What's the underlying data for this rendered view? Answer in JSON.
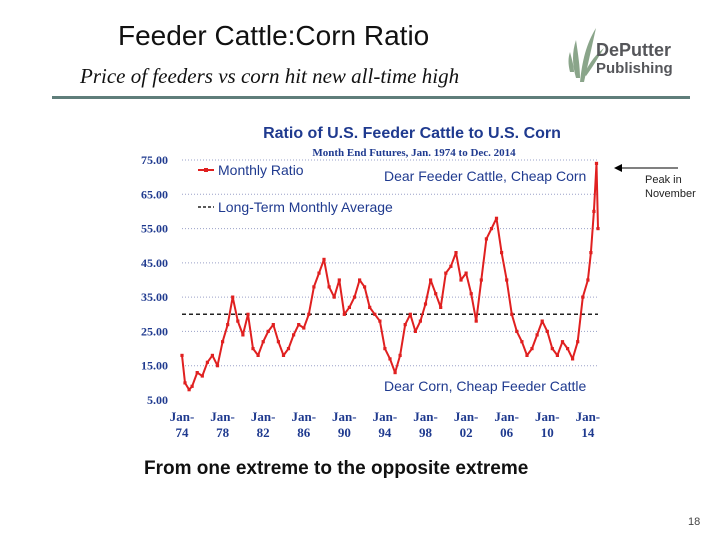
{
  "slide": {
    "title": "Feeder Cattle:Corn Ratio",
    "subtitle": "Price of feeders vs corn hit new all-time high",
    "caption": "From one extreme to the opposite extreme",
    "page_number": "18",
    "peak_note_line1": "Peak in",
    "peak_note_line2": "November"
  },
  "logo": {
    "line1": "DePutter",
    "line2": "Publishing",
    "leaf_color": "#8aa58a",
    "text_color": "#55565a"
  },
  "colors": {
    "series": "#e02020",
    "average": "#222222",
    "title": "#1f3a8f",
    "grid": "#9aa0c8",
    "rule": "#5f7e7a"
  },
  "chart_data": {
    "type": "line",
    "title": "Ratio of U.S. Feeder Cattle to U.S. Corn",
    "subtitle": "Month End Futures, Jan. 1974 to Dec. 2014",
    "xlabel": "",
    "ylabel": "",
    "ylim": [
      5,
      75
    ],
    "xlim": [
      1974,
      2015
    ],
    "y_ticks": [
      "75.00",
      "65.00",
      "55.00",
      "45.00",
      "35.00",
      "25.00",
      "15.00",
      "5.00"
    ],
    "y_tick_values": [
      75,
      65,
      55,
      45,
      35,
      25,
      15,
      5
    ],
    "x_ticks_top": [
      "Jan-",
      "Jan-",
      "Jan-",
      "Jan-",
      "Jan-",
      "Jan-",
      "Jan-",
      "Jan-",
      "Jan-",
      "Jan-",
      "Jan-"
    ],
    "x_ticks_bottom": [
      "74",
      "78",
      "82",
      "86",
      "90",
      "94",
      "98",
      "02",
      "06",
      "10",
      "14"
    ],
    "x_tick_values": [
      1974,
      1978,
      1982,
      1986,
      1990,
      1994,
      1998,
      2002,
      2006,
      2010,
      2014
    ],
    "grid": true,
    "legend_position": "top-left",
    "annotations": [
      "Dear Feeder Cattle, Cheap Corn",
      "Dear Corn, Cheap Feeder Cattle"
    ],
    "series": [
      {
        "name": "Monthly Ratio",
        "style": "line-markers",
        "x": [
          1974.0,
          1974.3,
          1974.7,
          1975.0,
          1975.5,
          1976.0,
          1976.5,
          1977.0,
          1977.5,
          1978.0,
          1978.5,
          1979.0,
          1979.5,
          1980.0,
          1980.5,
          1981.0,
          1981.5,
          1982.0,
          1982.5,
          1983.0,
          1983.5,
          1984.0,
          1984.5,
          1985.0,
          1985.5,
          1986.0,
          1986.5,
          1987.0,
          1987.5,
          1988.0,
          1988.5,
          1989.0,
          1989.5,
          1990.0,
          1990.5,
          1991.0,
          1991.5,
          1992.0,
          1992.5,
          1993.0,
          1993.5,
          1994.0,
          1994.5,
          1995.0,
          1995.5,
          1996.0,
          1996.5,
          1997.0,
          1997.5,
          1998.0,
          1998.5,
          1999.0,
          1999.5,
          2000.0,
          2000.5,
          2001.0,
          2001.5,
          2002.0,
          2002.5,
          2003.0,
          2003.5,
          2004.0,
          2004.5,
          2005.0,
          2005.5,
          2006.0,
          2006.5,
          2007.0,
          2007.5,
          2008.0,
          2008.5,
          2009.0,
          2009.5,
          2010.0,
          2010.5,
          2011.0,
          2011.5,
          2012.0,
          2012.5,
          2013.0,
          2013.5,
          2014.0,
          2014.3,
          2014.6,
          2014.85,
          2015.0
        ],
        "y": [
          18,
          10,
          8,
          9,
          13,
          12,
          16,
          18,
          15,
          22,
          27,
          35,
          28,
          24,
          30,
          20,
          18,
          22,
          25,
          27,
          22,
          18,
          20,
          24,
          27,
          26,
          30,
          38,
          42,
          46,
          38,
          35,
          40,
          30,
          32,
          35,
          40,
          38,
          32,
          30,
          28,
          20,
          17,
          13,
          18,
          27,
          30,
          25,
          28,
          33,
          40,
          36,
          32,
          42,
          44,
          48,
          40,
          42,
          36,
          28,
          40,
          52,
          55,
          58,
          48,
          40,
          30,
          25,
          22,
          18,
          20,
          24,
          28,
          25,
          20,
          18,
          22,
          20,
          17,
          22,
          35,
          40,
          48,
          60,
          74,
          55
        ]
      },
      {
        "name": "Long-Term Monthly Average",
        "style": "dashed",
        "value": 30
      }
    ]
  }
}
